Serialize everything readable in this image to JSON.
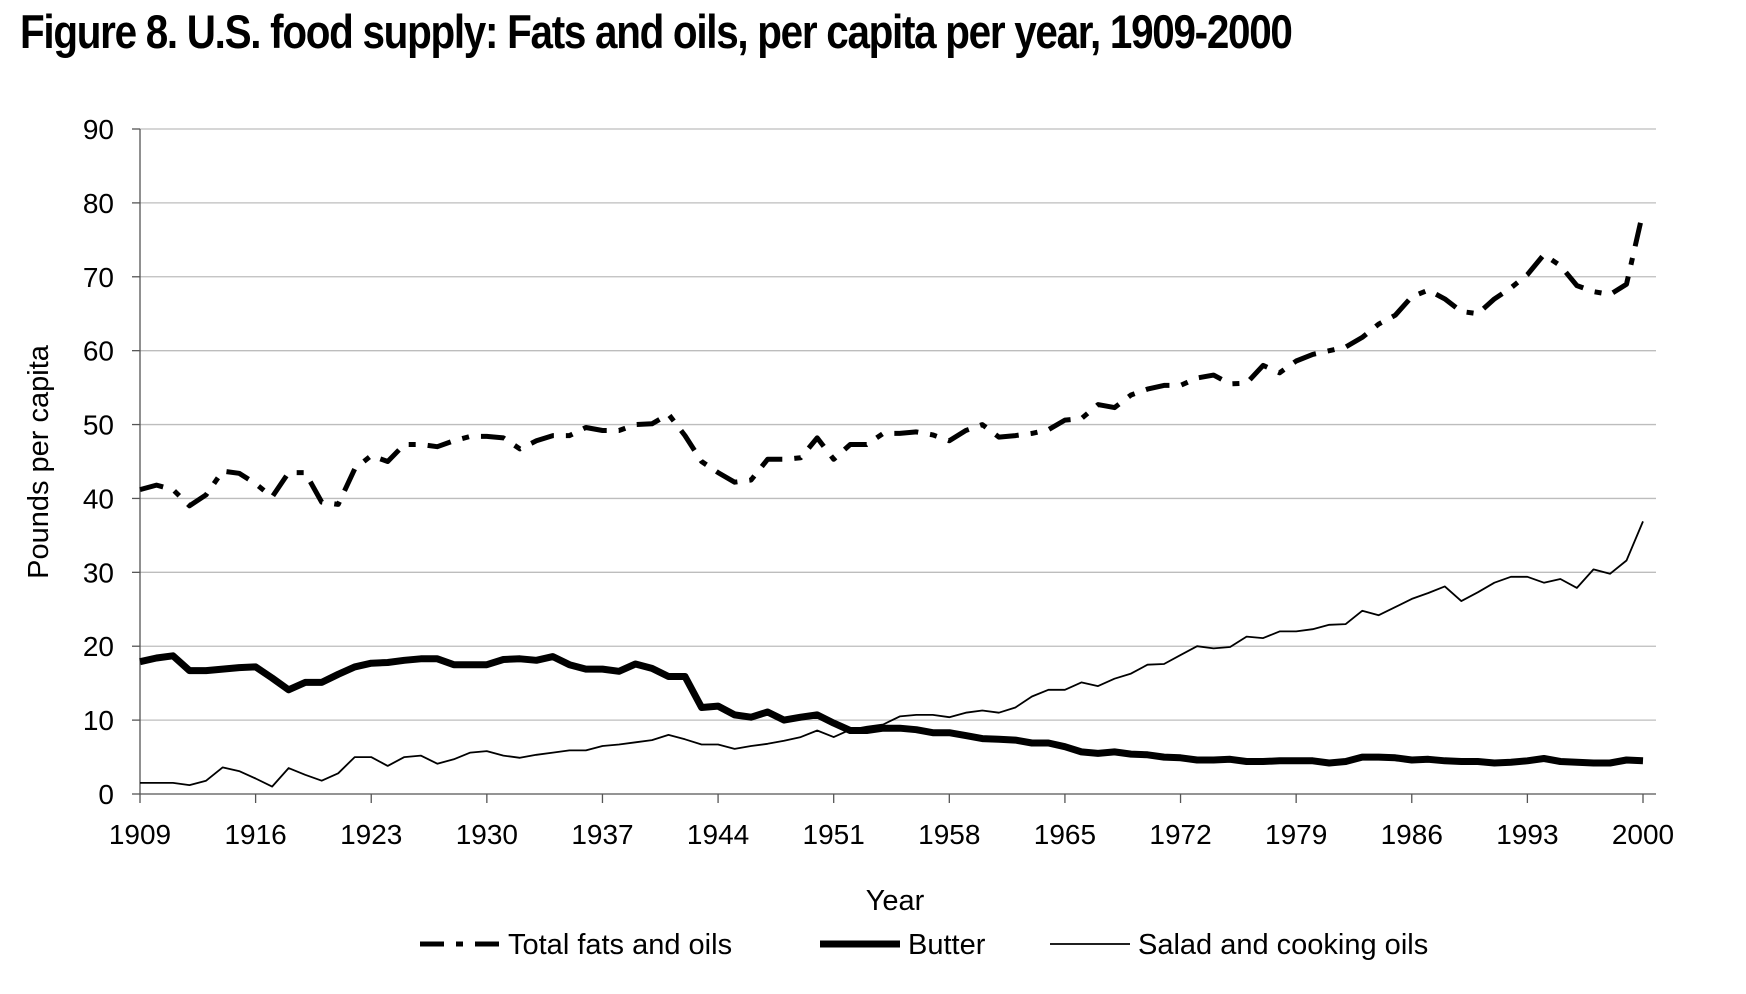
{
  "chart_data": {
    "type": "line",
    "title": "Figure 8. U.S. food supply: Fats and oils, per capita per year, 1909-2000",
    "xlabel": "Year",
    "ylabel": "Pounds per capita",
    "xlim": [
      1909,
      2000
    ],
    "ylim": [
      0,
      90
    ],
    "x_ticks": [
      "1909",
      "1916",
      "1923",
      "1930",
      "1937",
      "1944",
      "1951",
      "1958",
      "1965",
      "1972",
      "1979",
      "1986",
      "1993",
      "2000"
    ],
    "y_ticks": [
      "0",
      "10",
      "20",
      "30",
      "40",
      "50",
      "60",
      "70",
      "80",
      "90"
    ],
    "grid": true,
    "legend": "bottom",
    "x": [
      1909,
      1910,
      1911,
      1912,
      1913,
      1914,
      1915,
      1916,
      1917,
      1918,
      1919,
      1920,
      1921,
      1922,
      1923,
      1924,
      1925,
      1926,
      1927,
      1928,
      1929,
      1930,
      1931,
      1932,
      1933,
      1934,
      1935,
      1936,
      1937,
      1938,
      1939,
      1940,
      1941,
      1942,
      1943,
      1944,
      1945,
      1946,
      1947,
      1948,
      1949,
      1950,
      1951,
      1952,
      1953,
      1954,
      1955,
      1956,
      1957,
      1958,
      1959,
      1960,
      1961,
      1962,
      1963,
      1964,
      1965,
      1966,
      1967,
      1968,
      1969,
      1970,
      1971,
      1972,
      1973,
      1974,
      1975,
      1976,
      1977,
      1978,
      1979,
      1980,
      1981,
      1982,
      1983,
      1984,
      1985,
      1986,
      1987,
      1988,
      1989,
      1990,
      1991,
      1992,
      1993,
      1994,
      1995,
      1996,
      1997,
      1998,
      1999,
      2000
    ],
    "series": [
      {
        "name": "Total fats and oils",
        "style": "dash-dot-thick",
        "color": "#000000",
        "values": [
          41.2,
          41.8,
          41.2,
          39,
          40.5,
          43.7,
          43.4,
          42,
          40.2,
          43.5,
          43.5,
          39.5,
          39.2,
          44,
          45.8,
          45,
          47.3,
          47.3,
          47,
          47.8,
          48.4,
          48.4,
          48.2,
          46.7,
          47.8,
          48.5,
          48.5,
          49.6,
          49.2,
          49.2,
          50,
          50.1,
          51.4,
          48.5,
          45,
          43.5,
          42.2,
          42.5,
          45.3,
          45.3,
          45.5,
          48.2,
          45.3,
          47.3,
          47.3,
          48.8,
          48.8,
          49,
          48.6,
          47.8,
          49.2,
          50,
          48.3,
          48.5,
          48.8,
          49.3,
          50.6,
          50.8,
          52.7,
          52.3,
          54,
          54.8,
          55.3,
          55.3,
          56.3,
          56.7,
          55.5,
          55.6,
          58,
          57,
          58.6,
          59.5,
          60,
          60.5,
          61.8,
          63.6,
          64.8,
          67.3,
          68.2,
          67,
          65.3,
          65,
          67,
          68.5,
          70.3,
          73,
          71.5,
          68.8,
          68,
          67.6,
          69,
          78.8
        ]
      },
      {
        "name": "Butter",
        "style": "solid-thick",
        "color": "#000000",
        "values": [
          17.9,
          18.4,
          18.7,
          16.7,
          16.7,
          16.9,
          17.1,
          17.2,
          15.7,
          14.1,
          15.1,
          15.1,
          16.2,
          17.2,
          17.7,
          17.8,
          18.1,
          18.3,
          18.3,
          17.5,
          17.5,
          17.5,
          18.2,
          18.3,
          18.1,
          18.6,
          17.5,
          16.9,
          16.9,
          16.6,
          17.6,
          17,
          15.9,
          15.9,
          11.7,
          11.9,
          10.7,
          10.4,
          11.1,
          10,
          10.4,
          10.7,
          9.6,
          8.6,
          8.6,
          8.9,
          8.9,
          8.7,
          8.3,
          8.3,
          7.9,
          7.5,
          7.4,
          7.3,
          6.9,
          6.9,
          6.4,
          5.7,
          5.5,
          5.7,
          5.4,
          5.3,
          5,
          4.9,
          4.6,
          4.6,
          4.7,
          4.4,
          4.4,
          4.5,
          4.5,
          4.5,
          4.2,
          4.4,
          5,
          5,
          4.9,
          4.6,
          4.7,
          4.5,
          4.4,
          4.4,
          4.2,
          4.3,
          4.5,
          4.8,
          4.4,
          4.3,
          4.2,
          4.2,
          4.6,
          4.5
        ]
      },
      {
        "name": "Salad and cooking oils",
        "style": "solid-thin",
        "color": "#000000",
        "values": [
          1.5,
          1.5,
          1.5,
          1.2,
          1.8,
          3.6,
          3.1,
          2.1,
          1,
          3.5,
          2.6,
          1.8,
          2.8,
          5,
          5,
          3.8,
          5,
          5.2,
          4.1,
          4.7,
          5.6,
          5.8,
          5.2,
          4.9,
          5.3,
          5.6,
          5.9,
          5.9,
          6.5,
          6.7,
          7,
          7.3,
          8,
          7.4,
          6.7,
          6.7,
          6.1,
          6.5,
          6.8,
          7.2,
          7.7,
          8.6,
          7.7,
          8.7,
          9.1,
          9.4,
          10.5,
          10.7,
          10.7,
          10.4,
          11,
          11.3,
          11,
          11.7,
          13.2,
          14.1,
          14.1,
          15.1,
          14.6,
          15.6,
          16.3,
          17.5,
          17.6,
          18.8,
          20,
          19.7,
          19.9,
          21.3,
          21.1,
          22,
          22,
          22.3,
          22.9,
          23,
          24.8,
          24.2,
          25.3,
          26.4,
          27.2,
          28.1,
          26.1,
          27.3,
          28.6,
          29.4,
          29.4,
          28.6,
          29.1,
          27.9,
          30.4,
          29.8,
          31.6,
          36.9
        ]
      }
    ]
  }
}
